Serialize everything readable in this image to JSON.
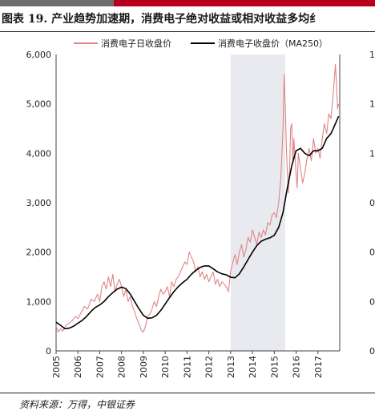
{
  "header": {
    "title": "图表 19. 产业趋势加速期，消费电子绝对收益或相对收益多均纟"
  },
  "footer": {
    "source": "资料来源：万得，中银证券"
  },
  "chart_data": {
    "type": "line",
    "title": "图表 19. 产业趋势加速期，消费电子绝对收益或相对收益多均纟",
    "xlabel": "",
    "ylabel": "",
    "ylim": [
      0,
      6000
    ],
    "xlim": [
      2005.0,
      2018.0
    ],
    "y_ticks": [
      0,
      1000,
      2000,
      3000,
      4000,
      5000,
      6000
    ],
    "y_tick_labels": [
      "0",
      "1,000",
      "2,000",
      "3,000",
      "4,000",
      "5,000",
      "6,000"
    ],
    "x_tick_labels": [
      "2005",
      "2006",
      "2007",
      "2008",
      "2009",
      "2010",
      "2011",
      "2012",
      "2013",
      "2014",
      "2015",
      "2016",
      "2017"
    ],
    "right_axis_tick_labels": [
      "1",
      "1",
      "1",
      "0",
      "0",
      "0",
      "0"
    ],
    "shaded_period": [
      2013.0,
      2015.5
    ],
    "legend_position": "top",
    "grid": false,
    "colors": {
      "daily": "#e08585",
      "ma": "#000000",
      "shade": "#e9eaef",
      "top_bar_red": "#b8001e",
      "top_bar_gray": "#6e6e6e"
    },
    "series": [
      {
        "name": "消费电子日收盘价",
        "x": [
          2005.0,
          2005.1,
          2005.2,
          2005.3,
          2005.45,
          2005.6,
          2005.75,
          2005.9,
          2006.0,
          2006.15,
          2006.3,
          2006.45,
          2006.6,
          2006.75,
          2006.9,
          2007.0,
          2007.1,
          2007.2,
          2007.3,
          2007.4,
          2007.5,
          2007.6,
          2007.7,
          2007.8,
          2007.9,
          2008.0,
          2008.1,
          2008.2,
          2008.3,
          2008.4,
          2008.5,
          2008.6,
          2008.7,
          2008.8,
          2008.9,
          2009.0,
          2009.1,
          2009.2,
          2009.3,
          2009.4,
          2009.5,
          2009.6,
          2009.7,
          2009.8,
          2009.9,
          2010.0,
          2010.1,
          2010.2,
          2010.3,
          2010.4,
          2010.5,
          2010.6,
          2010.7,
          2010.8,
          2010.9,
          2011.0,
          2011.1,
          2011.2,
          2011.3,
          2011.4,
          2011.5,
          2011.6,
          2011.7,
          2011.8,
          2011.9,
          2012.0,
          2012.1,
          2012.2,
          2012.3,
          2012.4,
          2012.5,
          2012.6,
          2012.7,
          2012.8,
          2012.9,
          2013.0,
          2013.1,
          2013.2,
          2013.3,
          2013.4,
          2013.5,
          2013.6,
          2013.7,
          2013.8,
          2013.9,
          2014.0,
          2014.1,
          2014.2,
          2014.3,
          2014.4,
          2014.5,
          2014.6,
          2014.7,
          2014.8,
          2014.9,
          2015.0,
          2015.1,
          2015.2,
          2015.3,
          2015.4,
          2015.45,
          2015.5,
          2015.55,
          2015.6,
          2015.65,
          2015.7,
          2015.75,
          2015.8,
          2015.85,
          2015.9,
          2015.95,
          2016.0,
          2016.05,
          2016.1,
          2016.2,
          2016.3,
          2016.4,
          2016.5,
          2016.6,
          2016.7,
          2016.8,
          2016.9,
          2017.0,
          2017.1,
          2017.2,
          2017.3,
          2017.4,
          2017.5,
          2017.6,
          2017.7,
          2017.8,
          2017.85,
          2017.9,
          2017.95
        ],
        "values": [
          500,
          380,
          450,
          400,
          520,
          560,
          620,
          700,
          650,
          780,
          900,
          850,
          1050,
          1000,
          1150,
          1000,
          1300,
          1400,
          1250,
          1500,
          1300,
          1550,
          1200,
          1350,
          1450,
          1300,
          1100,
          1250,
          1000,
          1100,
          900,
          800,
          650,
          550,
          420,
          380,
          500,
          700,
          750,
          850,
          1000,
          900,
          1100,
          1250,
          1150,
          1200,
          1300,
          1100,
          1400,
          1300,
          1450,
          1500,
          1600,
          1700,
          1800,
          1750,
          2000,
          1900,
          1800,
          1600,
          1700,
          1500,
          1600,
          1450,
          1550,
          1400,
          1500,
          1600,
          1350,
          1450,
          1300,
          1400,
          1350,
          1300,
          1200,
          1600,
          1800,
          1950,
          1750,
          2000,
          2150,
          1900,
          2050,
          2300,
          2200,
          2450,
          2300,
          2150,
          2400,
          2300,
          2450,
          2350,
          2600,
          2550,
          2750,
          2800,
          2700,
          3000,
          3500,
          4500,
          5600,
          5000,
          4200,
          3600,
          3200,
          3700,
          4500,
          4600,
          3800,
          4300,
          3900,
          3600,
          3300,
          4000,
          3700,
          3400,
          3600,
          3900,
          4100,
          3850,
          4300,
          4000,
          4100,
          3900,
          4300,
          4600,
          4400,
          4800,
          4700,
          5200,
          5800,
          5400,
          4900,
          5000
        ]
      },
      {
        "name": "消费电子收盘价（MA250）",
        "x": [
          2005.0,
          2005.2,
          2005.4,
          2005.6,
          2005.8,
          2006.0,
          2006.2,
          2006.4,
          2006.6,
          2006.8,
          2007.0,
          2007.2,
          2007.4,
          2007.6,
          2007.8,
          2008.0,
          2008.2,
          2008.4,
          2008.6,
          2008.8,
          2009.0,
          2009.2,
          2009.4,
          2009.6,
          2009.8,
          2010.0,
          2010.2,
          2010.4,
          2010.6,
          2010.8,
          2011.0,
          2011.2,
          2011.4,
          2011.6,
          2011.8,
          2012.0,
          2012.2,
          2012.4,
          2012.6,
          2012.8,
          2013.0,
          2013.2,
          2013.4,
          2013.6,
          2013.8,
          2014.0,
          2014.2,
          2014.4,
          2014.6,
          2014.8,
          2015.0,
          2015.2,
          2015.4,
          2015.6,
          2015.8,
          2016.0,
          2016.2,
          2016.4,
          2016.6,
          2016.8,
          2017.0,
          2017.2,
          2017.4,
          2017.6,
          2017.8,
          2017.95
        ],
        "values": [
          580,
          520,
          450,
          460,
          500,
          560,
          620,
          700,
          800,
          880,
          930,
          1000,
          1100,
          1180,
          1250,
          1290,
          1260,
          1150,
          1000,
          850,
          720,
          660,
          670,
          720,
          820,
          950,
          1080,
          1200,
          1300,
          1380,
          1450,
          1550,
          1630,
          1690,
          1720,
          1720,
          1660,
          1600,
          1560,
          1540,
          1490,
          1480,
          1560,
          1700,
          1850,
          2000,
          2130,
          2220,
          2260,
          2290,
          2340,
          2500,
          2800,
          3300,
          3750,
          4050,
          4100,
          4000,
          3950,
          4050,
          4050,
          4100,
          4300,
          4400,
          4600,
          4750
        ]
      }
    ]
  }
}
